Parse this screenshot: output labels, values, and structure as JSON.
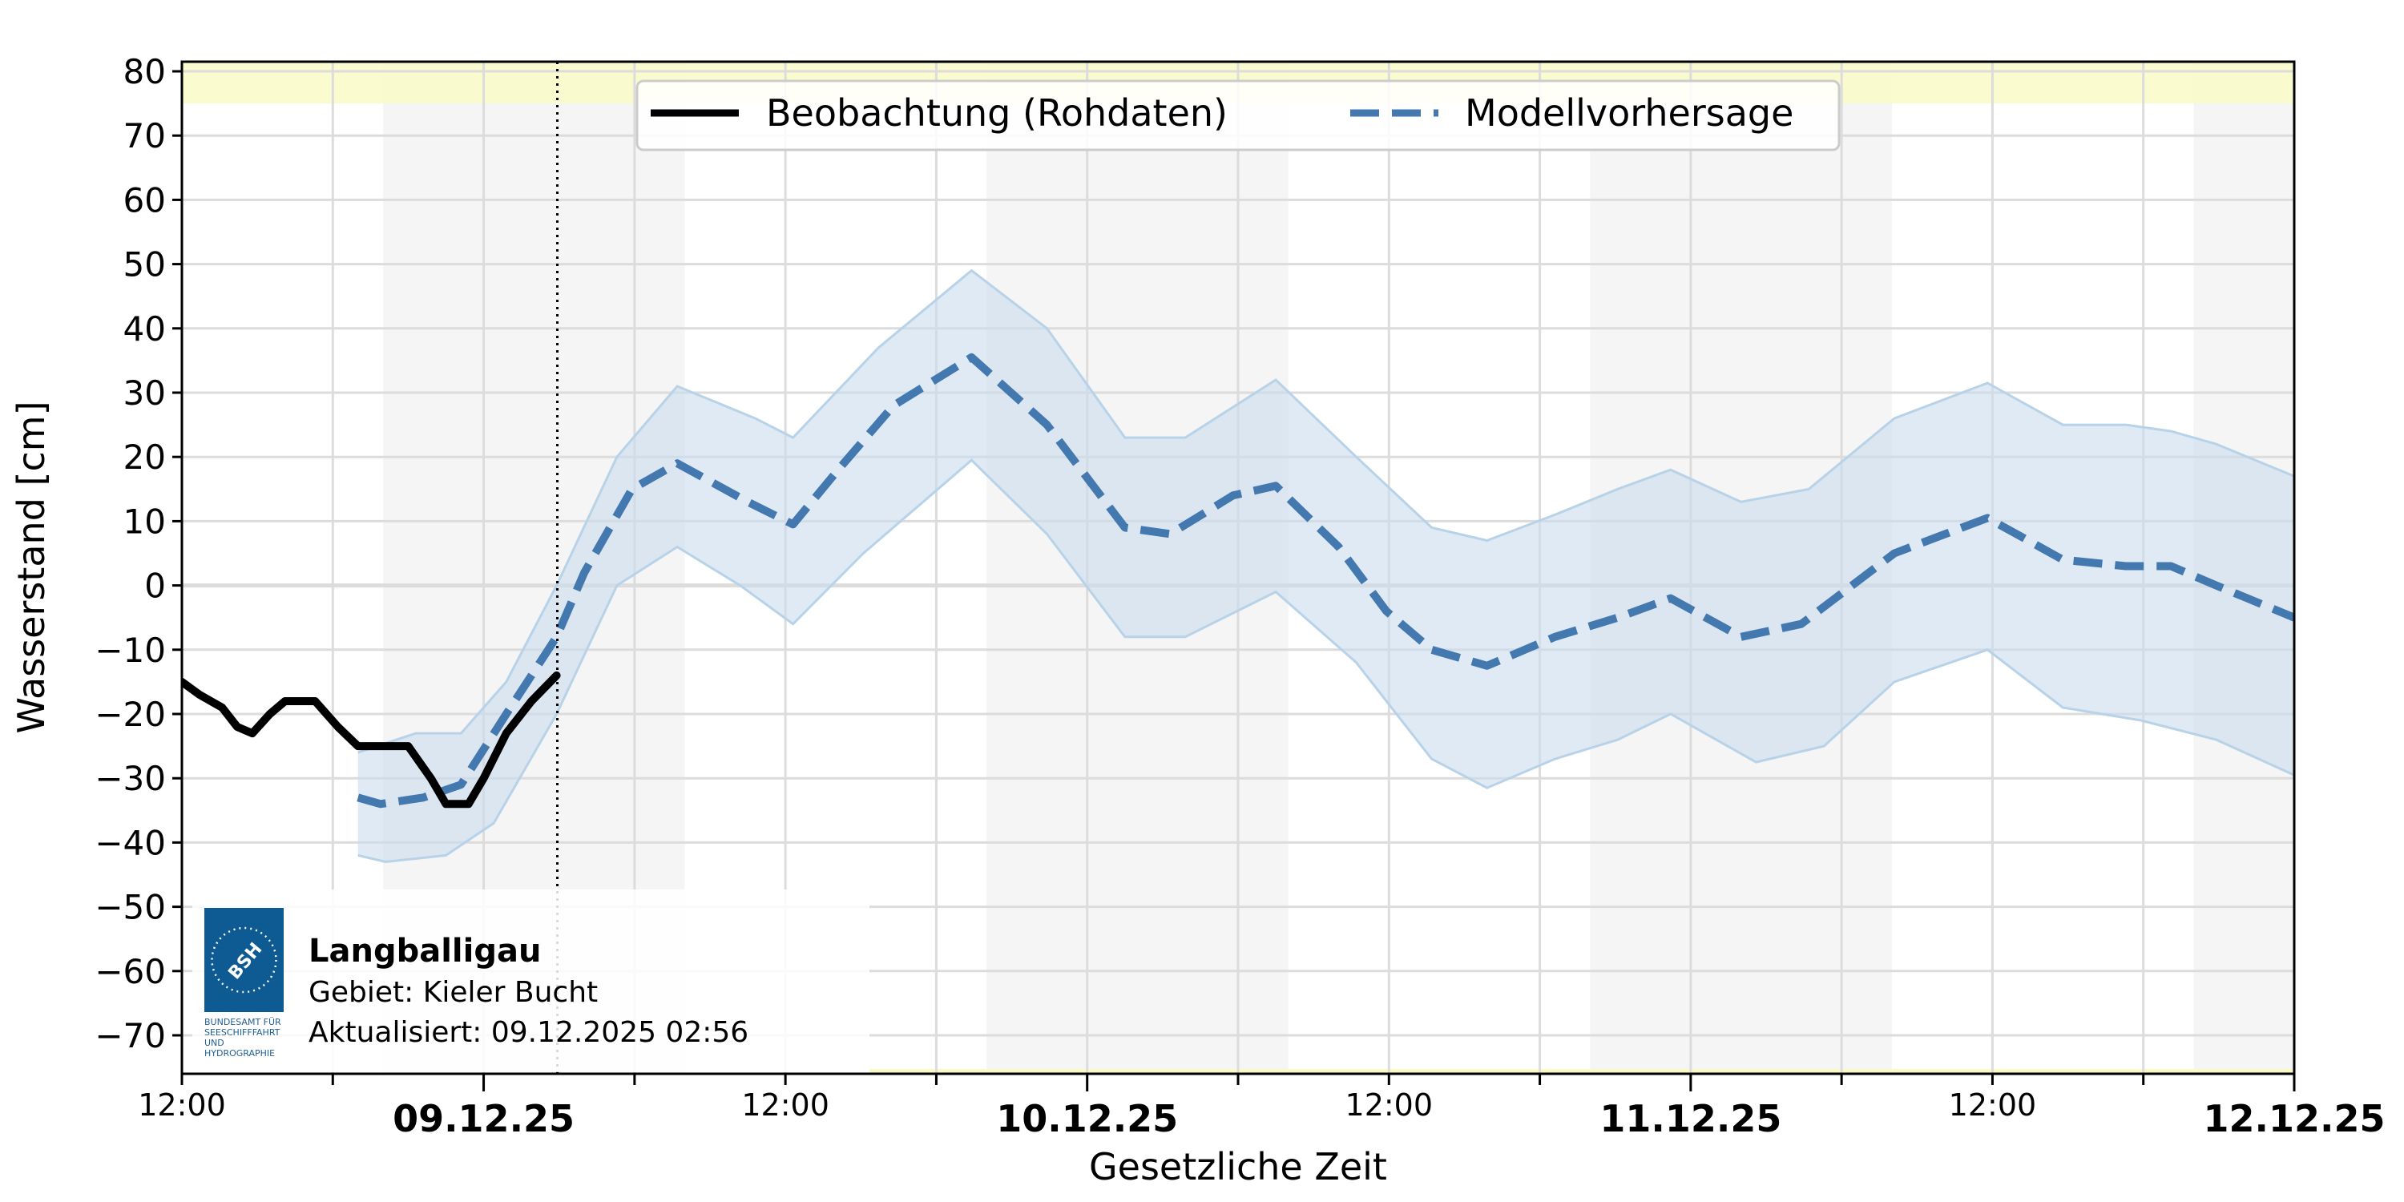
{
  "chart_data": {
    "type": "line",
    "title": "",
    "xlabel": "Gesetzliche Zeit",
    "ylabel": "Wasserstand [cm]",
    "ylim": [
      -76,
      81.5
    ],
    "xlim_hours": [
      0,
      84
    ],
    "x_origin": "08.12.25 12:00",
    "y_ticks": [
      80,
      70,
      60,
      50,
      40,
      30,
      20,
      10,
      0,
      -10,
      -20,
      -30,
      -40,
      -50,
      -60,
      -70
    ],
    "y_tick_labels": [
      "80",
      "70",
      "60",
      "50",
      "40",
      "30",
      "20",
      "10",
      "0",
      "−10",
      "−20",
      "−30",
      "−40",
      "−50",
      "−60",
      "−70"
    ],
    "x_ticks": [
      {
        "hour": 0,
        "label": "12:00",
        "major": false
      },
      {
        "hour": 12,
        "label": "09.12.25",
        "major": true
      },
      {
        "hour": 24,
        "label": "12:00",
        "major": false
      },
      {
        "hour": 36,
        "label": "10.12.25",
        "major": true
      },
      {
        "hour": 48,
        "label": "12:00",
        "major": false
      },
      {
        "hour": 60,
        "label": "11.12.25",
        "major": true
      },
      {
        "hour": 72,
        "label": "12:00",
        "major": false
      },
      {
        "hour": 84,
        "label": "12.12.25",
        "major": true
      }
    ],
    "x_minor_ticks_hours": [
      6,
      18,
      30,
      42,
      54,
      66,
      78
    ],
    "grid": true,
    "now_marker_hour": 14.93,
    "night_bands_hours": [
      [
        8,
        20
      ],
      [
        32,
        44
      ],
      [
        56,
        68
      ],
      [
        80,
        84
      ]
    ],
    "warning_band": {
      "from": 75,
      "to": 81.5,
      "color": "#fafac8"
    },
    "legend": {
      "position": "upper center",
      "entries": [
        {
          "label": "Beobachtung (Rohdaten)",
          "style": "solid",
          "color": "#000000"
        },
        {
          "label": "Modellvorhersage",
          "style": "dashed",
          "color": "#4479b0"
        }
      ]
    },
    "series": [
      {
        "name": "Beobachtung (Rohdaten)",
        "color": "#000000",
        "hours": [
          0,
          0.7,
          1.6,
          2.2,
          2.8,
          3.5,
          4.1,
          5.3,
          6.2,
          7.0,
          9.0,
          9.9,
          10.5,
          11.4,
          12.0,
          12.9,
          13.9,
          14.9
        ],
        "values": [
          -15,
          -17,
          -19,
          -22,
          -23,
          -20,
          -18,
          -18,
          -22,
          -25,
          -25,
          -30,
          -34,
          -34,
          -30,
          -23,
          -18,
          -14
        ]
      },
      {
        "name": "Modellvorhersage",
        "color": "#4479b0",
        "hours": [
          7.0,
          7.9,
          9.6,
          11.1,
          12.9,
          14.9,
          16.0,
          17.9,
          19.7,
          22.5,
          24.3,
          26.1,
          28.3,
          31.4,
          34.4,
          37.5,
          39.3,
          41.8,
          43.5,
          46.0,
          47.9,
          49.7,
          51.9,
          54.6,
          57.1,
          59.2,
          62.0,
          64.4,
          68.1,
          71.8,
          74.8,
          77.3,
          79.1,
          80.9,
          84.0
        ],
        "values": [
          -33,
          -34,
          -33,
          -31,
          -20,
          -8,
          2,
          15,
          19,
          13,
          9.5,
          18,
          28,
          35.5,
          25,
          9,
          8,
          14,
          15.5,
          6,
          -4,
          -10,
          -12.5,
          -8,
          -5,
          -2,
          -8,
          -6,
          5,
          10.5,
          4,
          3,
          3,
          0,
          -5
        ]
      },
      {
        "name": "Vorhersage obere Grenze",
        "color": "#b8d2e8",
        "hours": [
          7.0,
          9.3,
          11.1,
          12.9,
          14.9,
          17.3,
          19.7,
          22.8,
          24.3,
          27.7,
          31.4,
          34.4,
          37.5,
          39.9,
          43.5,
          46.7,
          49.7,
          51.9,
          54.6,
          57.1,
          59.2,
          62.0,
          64.7,
          68.1,
          71.8,
          74.8,
          77.3,
          79.1,
          80.9,
          84.0
        ],
        "values": [
          -26,
          -23,
          -23,
          -15,
          0,
          20,
          31,
          26,
          23,
          37,
          49,
          40,
          23,
          23,
          32,
          20,
          9,
          7,
          11,
          15,
          18,
          13,
          15,
          26,
          31.5,
          25,
          25,
          24,
          22,
          17
        ]
      },
      {
        "name": "Vorhersage untere Grenze",
        "color": "#b8d2e8",
        "hours": [
          7.0,
          8.1,
          10.5,
          12.4,
          14.9,
          17.3,
          19.7,
          22.2,
          24.3,
          27.1,
          31.4,
          34.4,
          37.5,
          39.9,
          43.5,
          46.7,
          49.7,
          51.9,
          54.6,
          57.1,
          59.2,
          62.6,
          65.3,
          68.1,
          71.8,
          74.8,
          77.9,
          80.9,
          84.0
        ],
        "values": [
          -42,
          -43,
          -42,
          -37,
          -20,
          0,
          6,
          0,
          -6,
          5,
          19.5,
          8,
          -8,
          -8,
          -1,
          -12,
          -27,
          -31.5,
          -27,
          -24,
          -20,
          -27.5,
          -25,
          -15,
          -10,
          -19,
          -21,
          -24,
          -29.5
        ]
      }
    ]
  },
  "info_box": {
    "station": "Langballigau",
    "area": "Gebiet: Kieler Bucht",
    "updated": "Aktualisiert: 09.12.2025 02:56",
    "logo_text": "BSH",
    "logo_caption": [
      "BUNDESAMT FÜR",
      "SEESCHIFFFAHRT",
      "UND",
      "HYDROGRAPHIE"
    ]
  },
  "colors": {
    "forecast_line": "#4479b0",
    "forecast_band": "#c9dcee",
    "observation_line": "#000000",
    "grid": "#dcdcdc",
    "night_band": "#f5f5f5",
    "warning_band": "#fafac8",
    "logo_blue": "#0e5a93"
  }
}
